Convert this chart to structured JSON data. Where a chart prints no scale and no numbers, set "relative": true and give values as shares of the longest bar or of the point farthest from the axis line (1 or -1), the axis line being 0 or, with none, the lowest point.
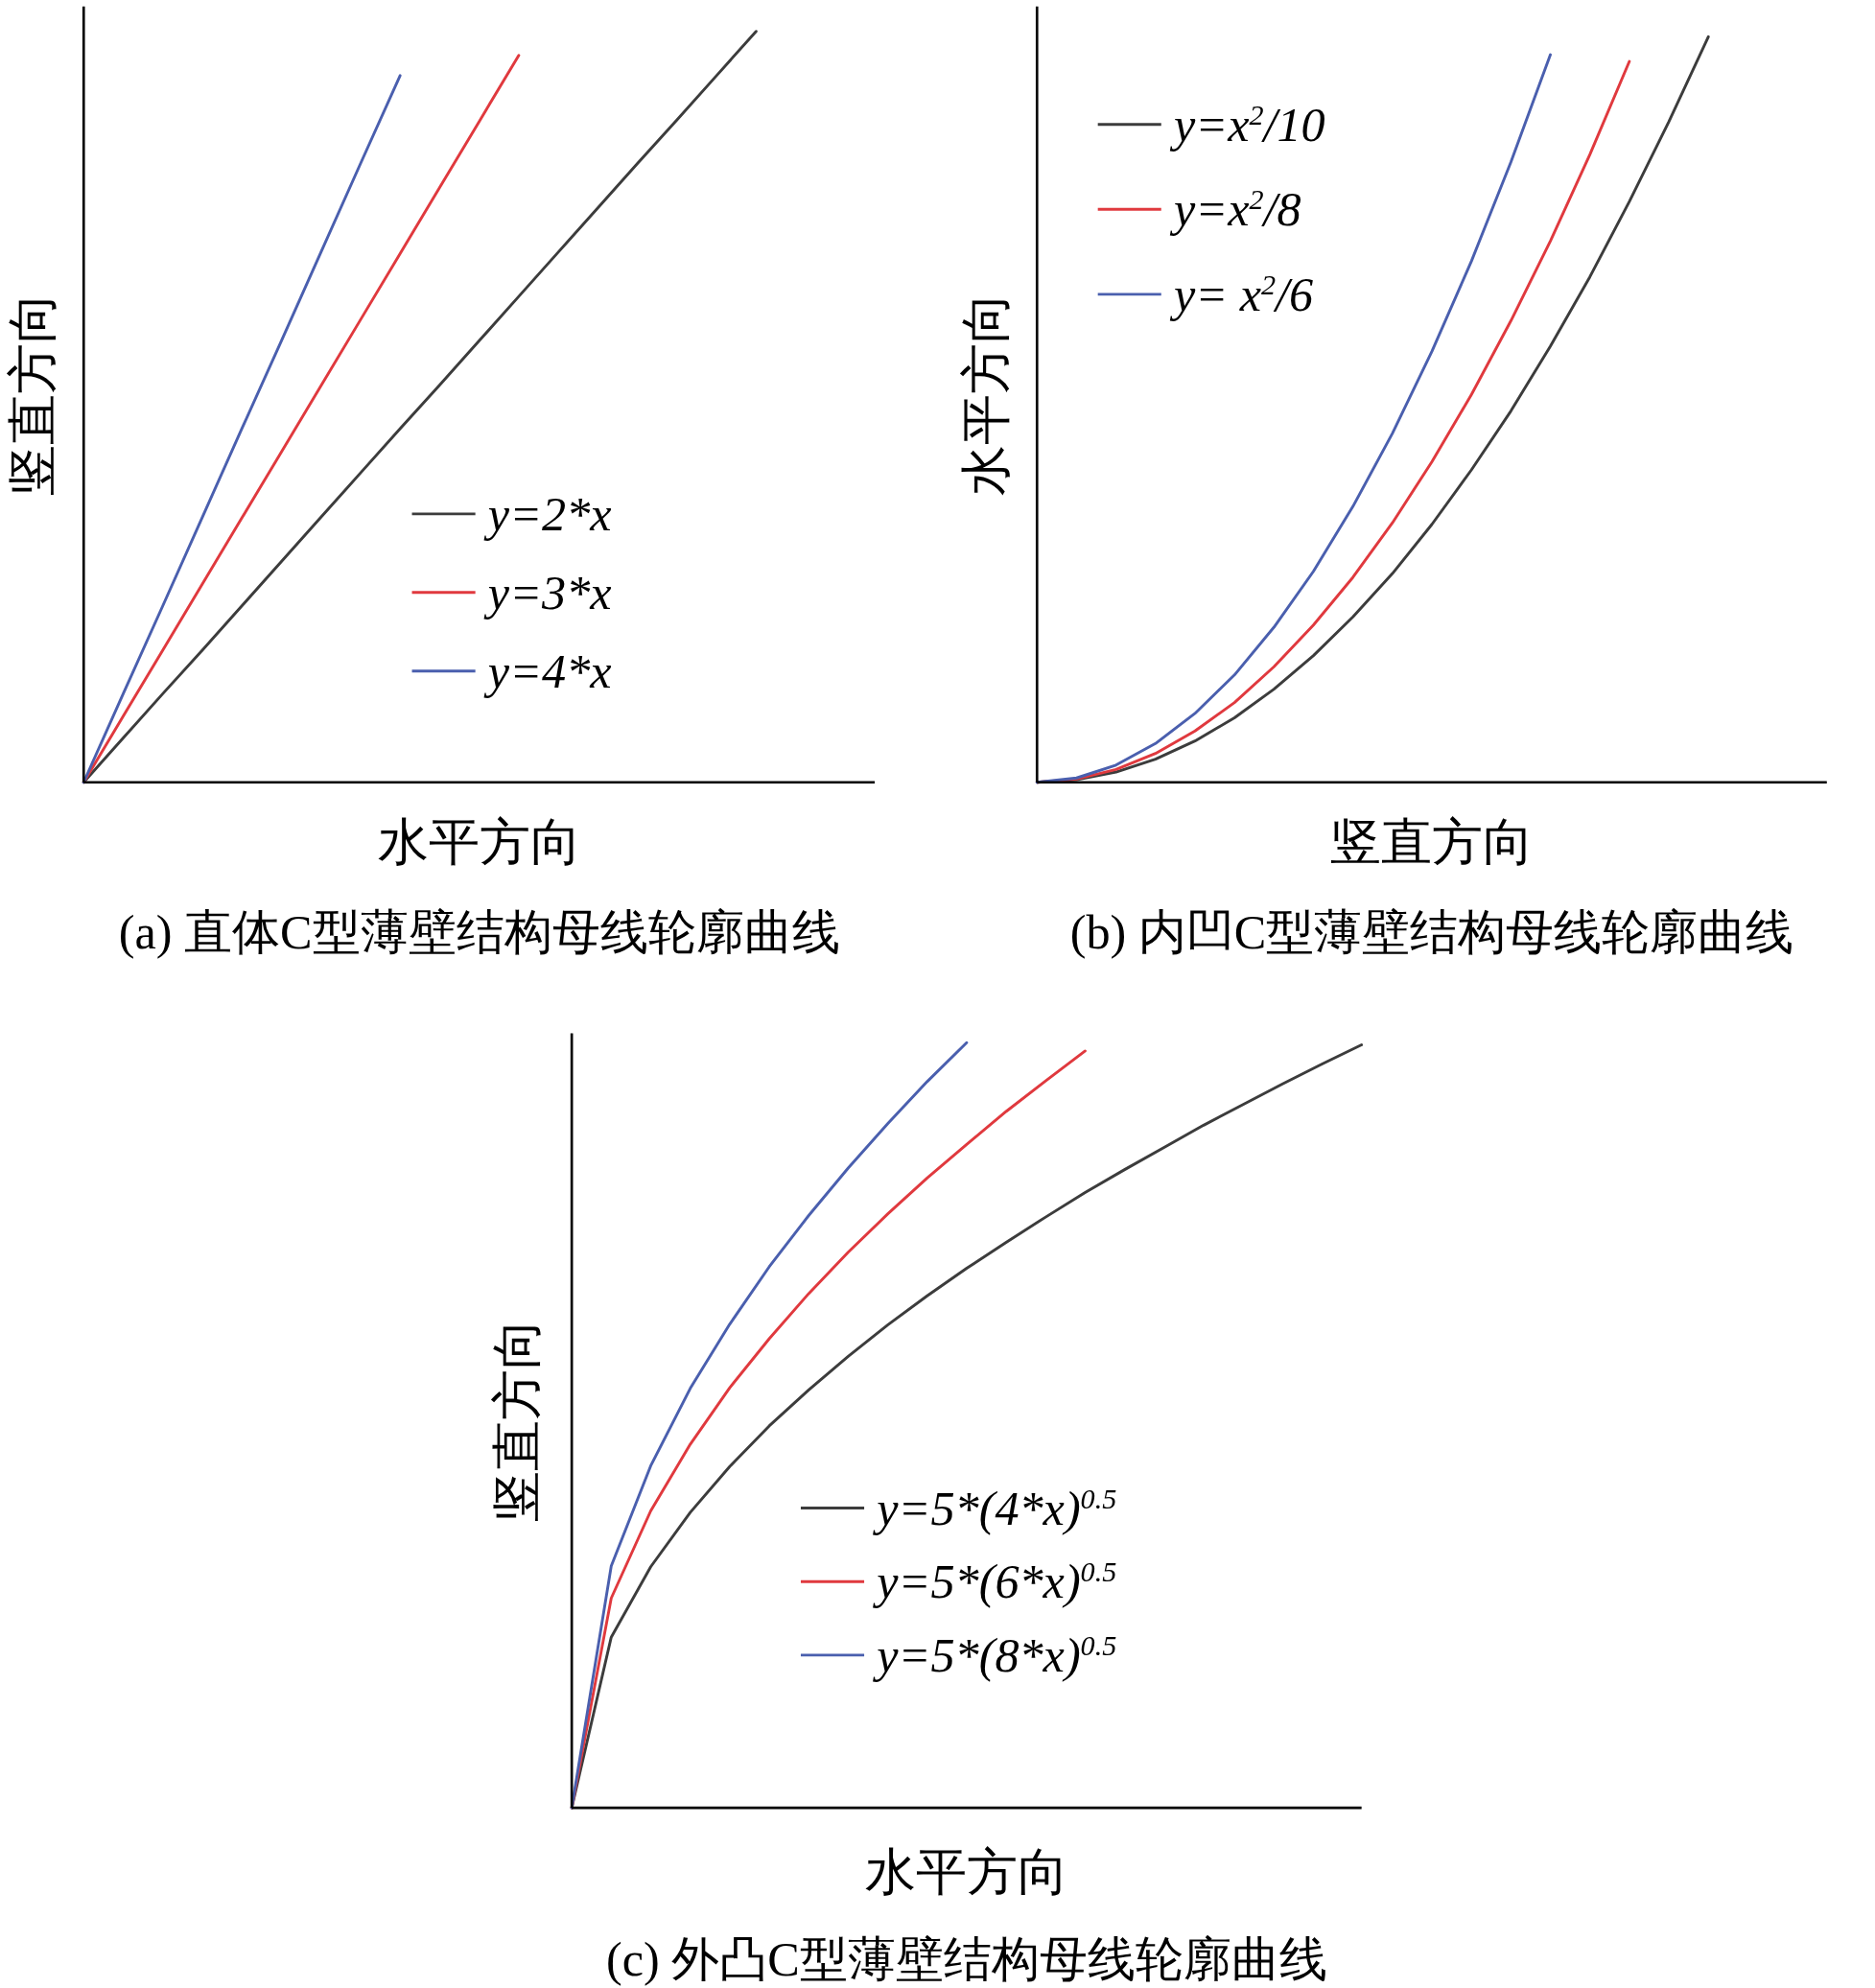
{
  "chart_data": [
    {
      "type": "line",
      "title": "(a) 直体C型薄壁结构母线轮廓曲线",
      "xlabel": "水平方向",
      "ylabel": "竖直方向",
      "relative": true,
      "legend": "center",
      "categories": [
        null,
        null,
        null,
        null,
        null,
        null,
        null,
        null,
        null,
        null,
        null,
        null,
        null,
        null,
        null,
        null,
        null,
        null,
        null,
        null,
        null
      ],
      "series": [
        {
          "name": "y=2*x",
          "color": "#3c3c3c",
          "values": [
            0,
            0.059,
            0.118,
            0.176,
            0.235,
            0.294,
            0.353,
            0.412,
            0.471,
            0.529,
            0.588,
            0.647,
            0.706,
            0.765,
            0.824,
            0.882,
            0.941,
            1,
            null,
            null,
            null
          ]
        },
        {
          "name": "y=3*x",
          "color": "#e0393e",
          "values": [
            0,
            0.088,
            0.176,
            0.264,
            0.352,
            0.44,
            0.528,
            0.616,
            0.704,
            0.792,
            0.88,
            0.968,
            null,
            null,
            null,
            null,
            null,
            null,
            null,
            null,
            null
          ]
        },
        {
          "name": "y=4*x",
          "color": "#4a5fae",
          "values": [
            0,
            0.118,
            0.235,
            0.353,
            0.471,
            0.588,
            0.706,
            0.824,
            0.941,
            null,
            null,
            null,
            null,
            null,
            null,
            null,
            null,
            null,
            null,
            null,
            null
          ]
        }
      ]
    },
    {
      "type": "line",
      "title": "(b) 内凹C型薄壁结构母线轮廓曲线",
      "xlabel": "竖直方向",
      "ylabel": "水平方向",
      "relative": true,
      "legend": "top left",
      "categories": [
        null,
        null,
        null,
        null,
        null,
        null,
        null,
        null,
        null,
        null,
        null,
        null,
        null,
        null,
        null,
        null,
        null,
        null,
        null,
        null,
        null
      ],
      "series": [
        {
          "name": "y=x$^{2}$/10",
          "color": "#3c3c3c",
          "values": [
            0,
            0.0035,
            0.0138,
            0.0311,
            0.0554,
            0.0865,
            0.125,
            0.17,
            0.222,
            0.28,
            0.346,
            0.419,
            0.498,
            0.585,
            0.678,
            0.779,
            0.886,
            1,
            null,
            null,
            null
          ]
        },
        {
          "name": "y=x$^{2}$/8",
          "color": "#e0393e",
          "values": [
            0,
            0.0043,
            0.0172,
            0.0387,
            0.0688,
            0.107,
            0.155,
            0.211,
            0.275,
            0.348,
            0.43,
            0.52,
            0.619,
            0.726,
            0.842,
            0.967,
            null,
            null,
            null,
            null,
            null
          ]
        },
        {
          "name": "y= x$^{2}$/6",
          "color": "#4a5fae",
          "values": [
            0,
            0.0058,
            0.0231,
            0.052,
            0.0924,
            0.144,
            0.208,
            0.283,
            0.37,
            0.468,
            0.578,
            0.699,
            0.832,
            0.976,
            null,
            null,
            null,
            null,
            null,
            null,
            null
          ]
        }
      ]
    },
    {
      "type": "line",
      "title": "(c) 外凸C型薄壁结构母线轮廓曲线",
      "xlabel": "水平方向",
      "ylabel": "竖直方向",
      "relative": true,
      "legend": "bottom",
      "categories": [
        null,
        null,
        null,
        null,
        null,
        null,
        null,
        null,
        null,
        null,
        null,
        null,
        null,
        null,
        null,
        null,
        null,
        null,
        null,
        null,
        null
      ],
      "series": [
        {
          "name": "y=5*(4*x)$^{0.5}$",
          "color": "#3c3c3c",
          "values": [
            0,
            0.223,
            0.315,
            0.386,
            0.446,
            0.499,
            0.546,
            0.59,
            0.631,
            0.669,
            0.705,
            0.739,
            0.772,
            0.804,
            0.834,
            0.863,
            0.892,
            0.919,
            0.946,
            0.972,
            0.997
          ]
        },
        {
          "name": "y=5*(6*x)$^{0.5}$",
          "color": "#e0393e",
          "values": [
            0,
            0.274,
            0.388,
            0.475,
            0.549,
            0.613,
            0.672,
            0.726,
            0.776,
            0.823,
            0.867,
            0.91,
            0.95,
            0.989,
            null,
            null,
            null,
            null,
            null,
            null,
            null
          ]
        },
        {
          "name": "y=5*(8*x)$^{0.5}$",
          "color": "#4a5fae",
          "values": [
            0,
            0.316,
            0.447,
            0.548,
            0.632,
            0.707,
            0.774,
            0.836,
            0.894,
            0.949,
            1,
            null,
            null,
            null,
            null,
            null,
            null,
            null,
            null,
            null,
            null
          ]
        }
      ]
    }
  ]
}
